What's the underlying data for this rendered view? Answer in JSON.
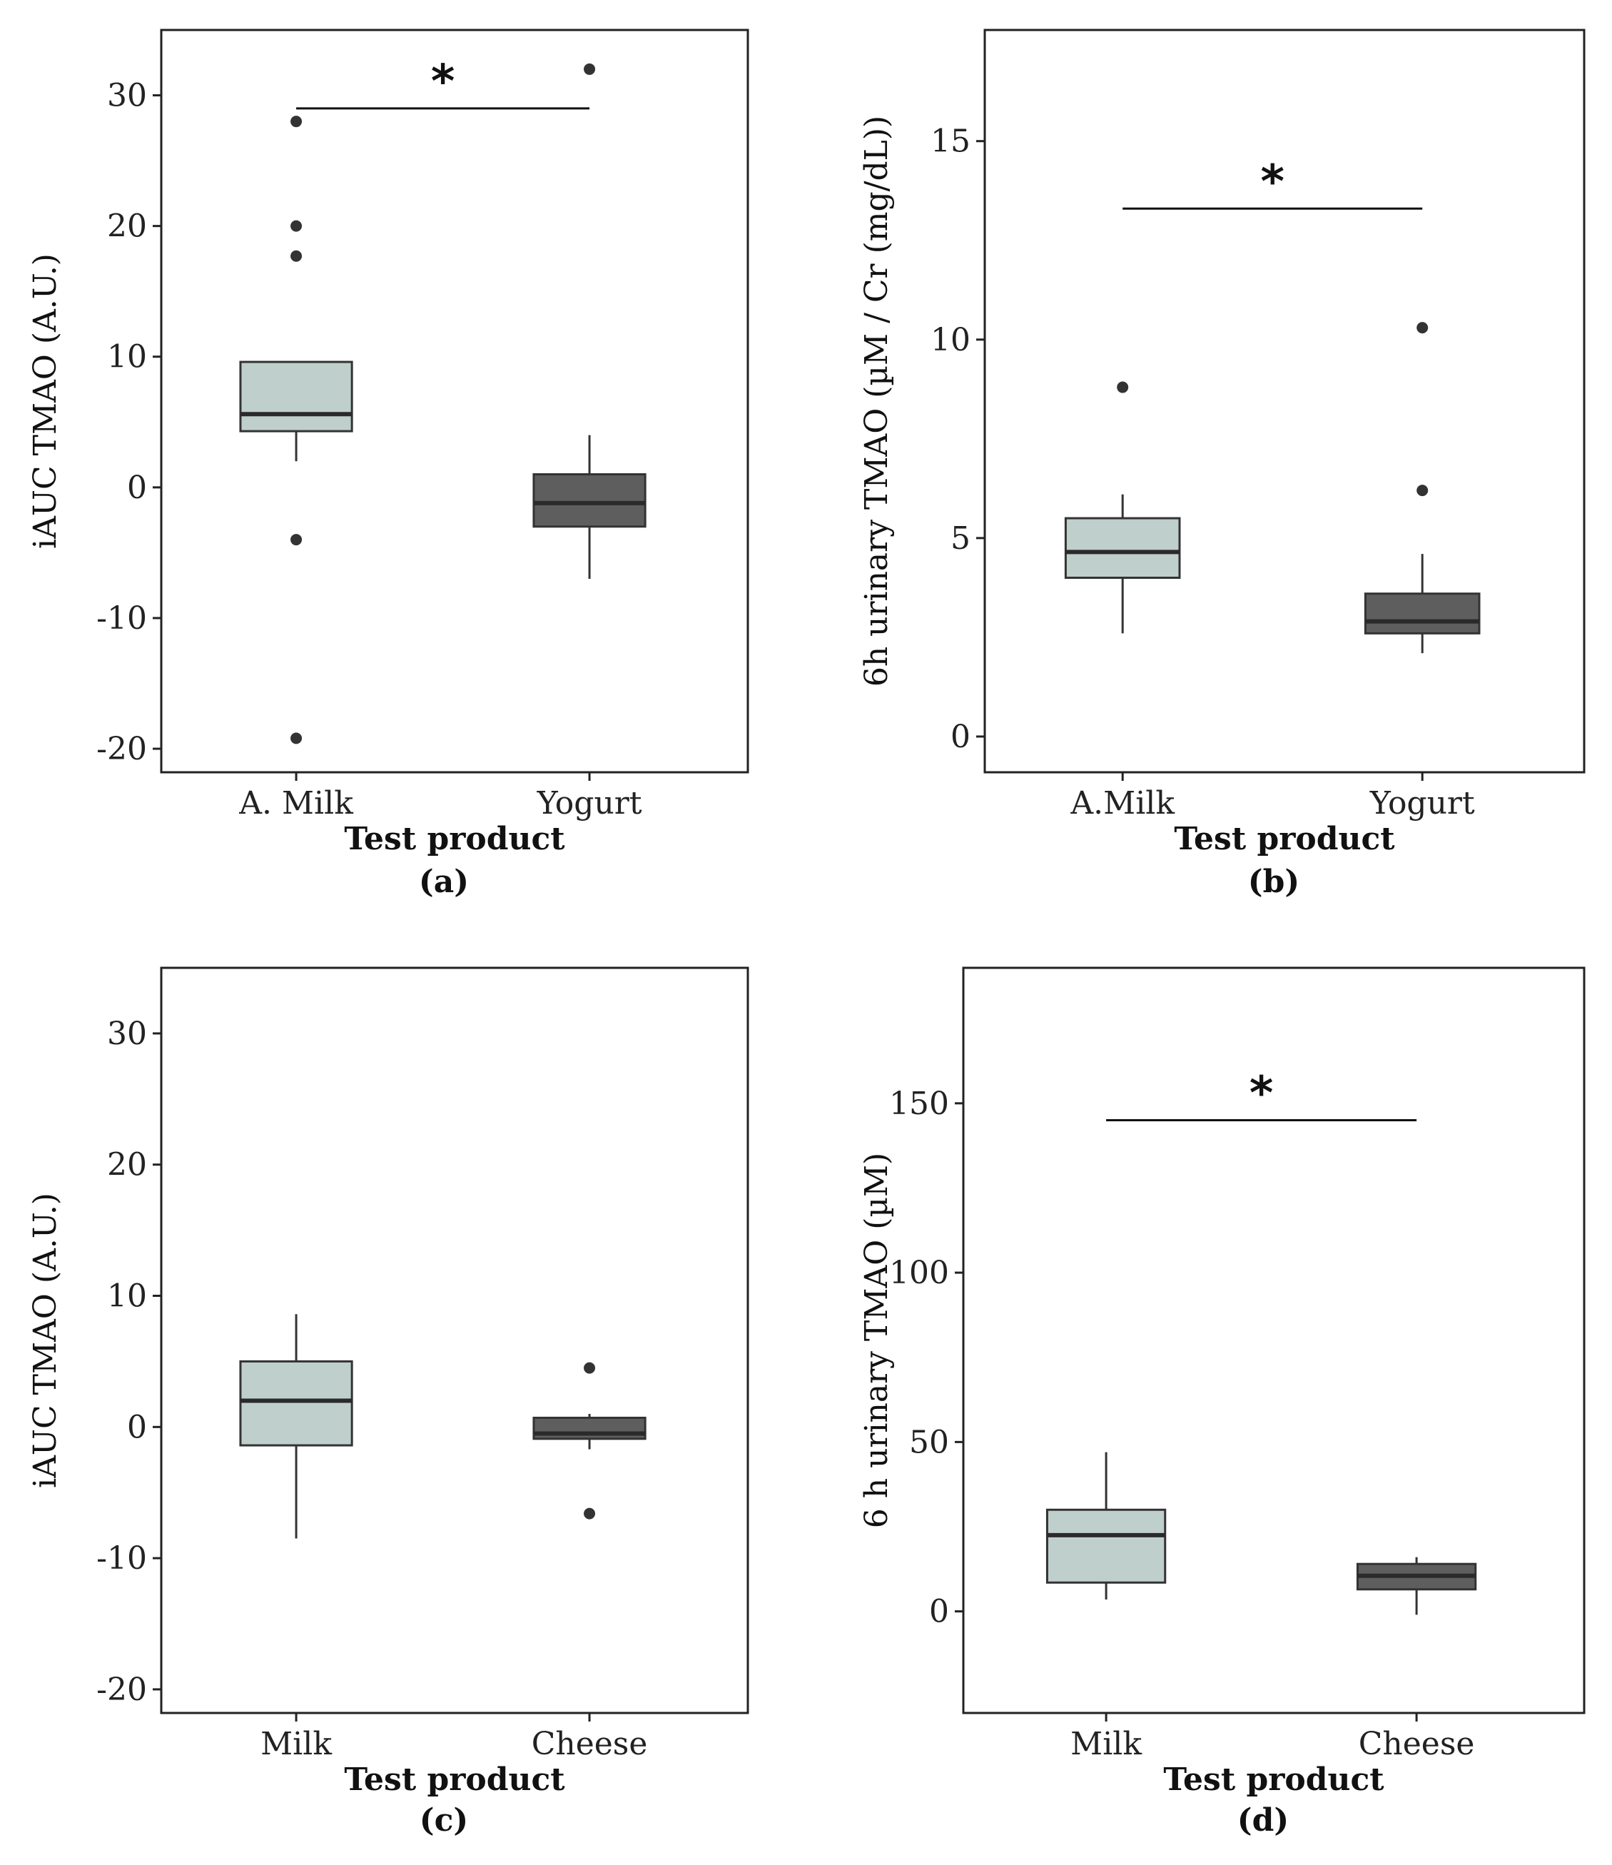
{
  "figure": {
    "panels_label": "Boxplots of TMAO by test product"
  },
  "colors": {
    "light_box": "#bfcfcc",
    "dark_box": "#5e5e5e",
    "line": "#333333",
    "frame": "#222222"
  },
  "chart_data": [
    {
      "panel_label": "(a)",
      "type": "boxplot",
      "ylabel": "iAUC TMAO (A.U.)",
      "xlabel": "Test product",
      "ylim": [
        -21.8,
        35
      ],
      "yticks": [
        -20,
        -10,
        0,
        10,
        20,
        30
      ],
      "ytick_labels": [
        "-20",
        "-10",
        "0",
        "10",
        "20",
        "30"
      ],
      "significance": {
        "label": "*",
        "y": 29
      },
      "series": [
        {
          "name": "A. Milk",
          "color": "light",
          "whisker_low": 2,
          "q1": 4.3,
          "median": 5.6,
          "q3": 9.6,
          "whisker_high": 9.6,
          "outliers": [
            28,
            20,
            17.7,
            -4,
            -19.2
          ]
        },
        {
          "name": "Yogurt",
          "color": "dark",
          "whisker_low": -7,
          "q1": -3,
          "median": -1.2,
          "q3": 1,
          "whisker_high": 4,
          "outliers": [
            32
          ]
        }
      ]
    },
    {
      "panel_label": "(b)",
      "type": "boxplot",
      "ylabel": "6h urinary TMAO (µM / Cr (mg/dL))",
      "xlabel": "Test product",
      "ylim": [
        -0.9,
        17.8
      ],
      "yticks": [
        0,
        5,
        10,
        15
      ],
      "ytick_labels": [
        "0",
        "5",
        "10",
        "15"
      ],
      "significance": {
        "label": "*",
        "y": 13.3
      },
      "series": [
        {
          "name": "A.Milk",
          "color": "light",
          "whisker_low": 2.6,
          "q1": 4,
          "median": 4.65,
          "q3": 5.5,
          "whisker_high": 6.1,
          "outliers": [
            8.8
          ]
        },
        {
          "name": "Yogurt",
          "color": "dark",
          "whisker_low": 2.1,
          "q1": 2.6,
          "median": 2.9,
          "q3": 3.6,
          "whisker_high": 4.6,
          "outliers": [
            10.3,
            6.2
          ]
        }
      ]
    },
    {
      "panel_label": "(c)",
      "type": "boxplot",
      "ylabel": "iAUC TMAO (A.U.)",
      "xlabel": "Test product",
      "ylim": [
        -21.8,
        35
      ],
      "yticks": [
        -20,
        -10,
        0,
        10,
        20,
        30
      ],
      "ytick_labels": [
        "-20",
        "-10",
        "0",
        "10",
        "20",
        "30"
      ],
      "significance": null,
      "series": [
        {
          "name": "Milk",
          "color": "light",
          "whisker_low": -8.5,
          "q1": -1.4,
          "median": 2,
          "q3": 5,
          "whisker_high": 8.6,
          "outliers": []
        },
        {
          "name": "Cheese",
          "color": "dark",
          "whisker_low": -1.7,
          "q1": -0.9,
          "median": -0.5,
          "q3": 0.7,
          "whisker_high": 1,
          "outliers": [
            4.5,
            -6.6
          ]
        }
      ]
    },
    {
      "panel_label": "(d)",
      "type": "boxplot",
      "ylabel": "6 h urinary TMAO (µM)",
      "xlabel": "Test product",
      "ylim": [
        -30,
        190
      ],
      "yticks": [
        0,
        50,
        100,
        150
      ],
      "ytick_labels": [
        "0",
        "50",
        "100",
        "150"
      ],
      "significance": {
        "label": "*",
        "y": 145
      },
      "series": [
        {
          "name": "Milk",
          "color": "light",
          "whisker_low": 3.5,
          "q1": 8.5,
          "median": 22.5,
          "q3": 30,
          "whisker_high": 47,
          "outliers": []
        },
        {
          "name": "Cheese",
          "color": "dark",
          "whisker_low": -1,
          "q1": 6.5,
          "median": 10.5,
          "q3": 14,
          "whisker_high": 16,
          "outliers": []
        }
      ]
    }
  ]
}
